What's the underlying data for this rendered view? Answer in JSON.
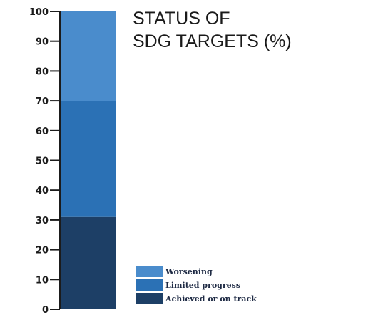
{
  "chart_data": {
    "type": "bar",
    "stacked": true,
    "title_lines": [
      "STATUS OF",
      "SDG TARGETS (%)"
    ],
    "xlabel": "",
    "ylabel": "",
    "ylim": [
      0,
      100
    ],
    "yticks": [
      0,
      10,
      20,
      30,
      40,
      50,
      60,
      70,
      80,
      90,
      100
    ],
    "grid": false,
    "legend_position": "bottom-right",
    "series": [
      {
        "name": "Achieved or on track",
        "value": 31,
        "color": "#1d3f66"
      },
      {
        "name": "Limited progress",
        "value": 39,
        "color": "#2b71b5"
      },
      {
        "name": "Worsening",
        "value": 30,
        "color": "#4a8ccc"
      }
    ],
    "legend_order": [
      "Worsening",
      "Limited progress",
      "Achieved or on track"
    ]
  }
}
